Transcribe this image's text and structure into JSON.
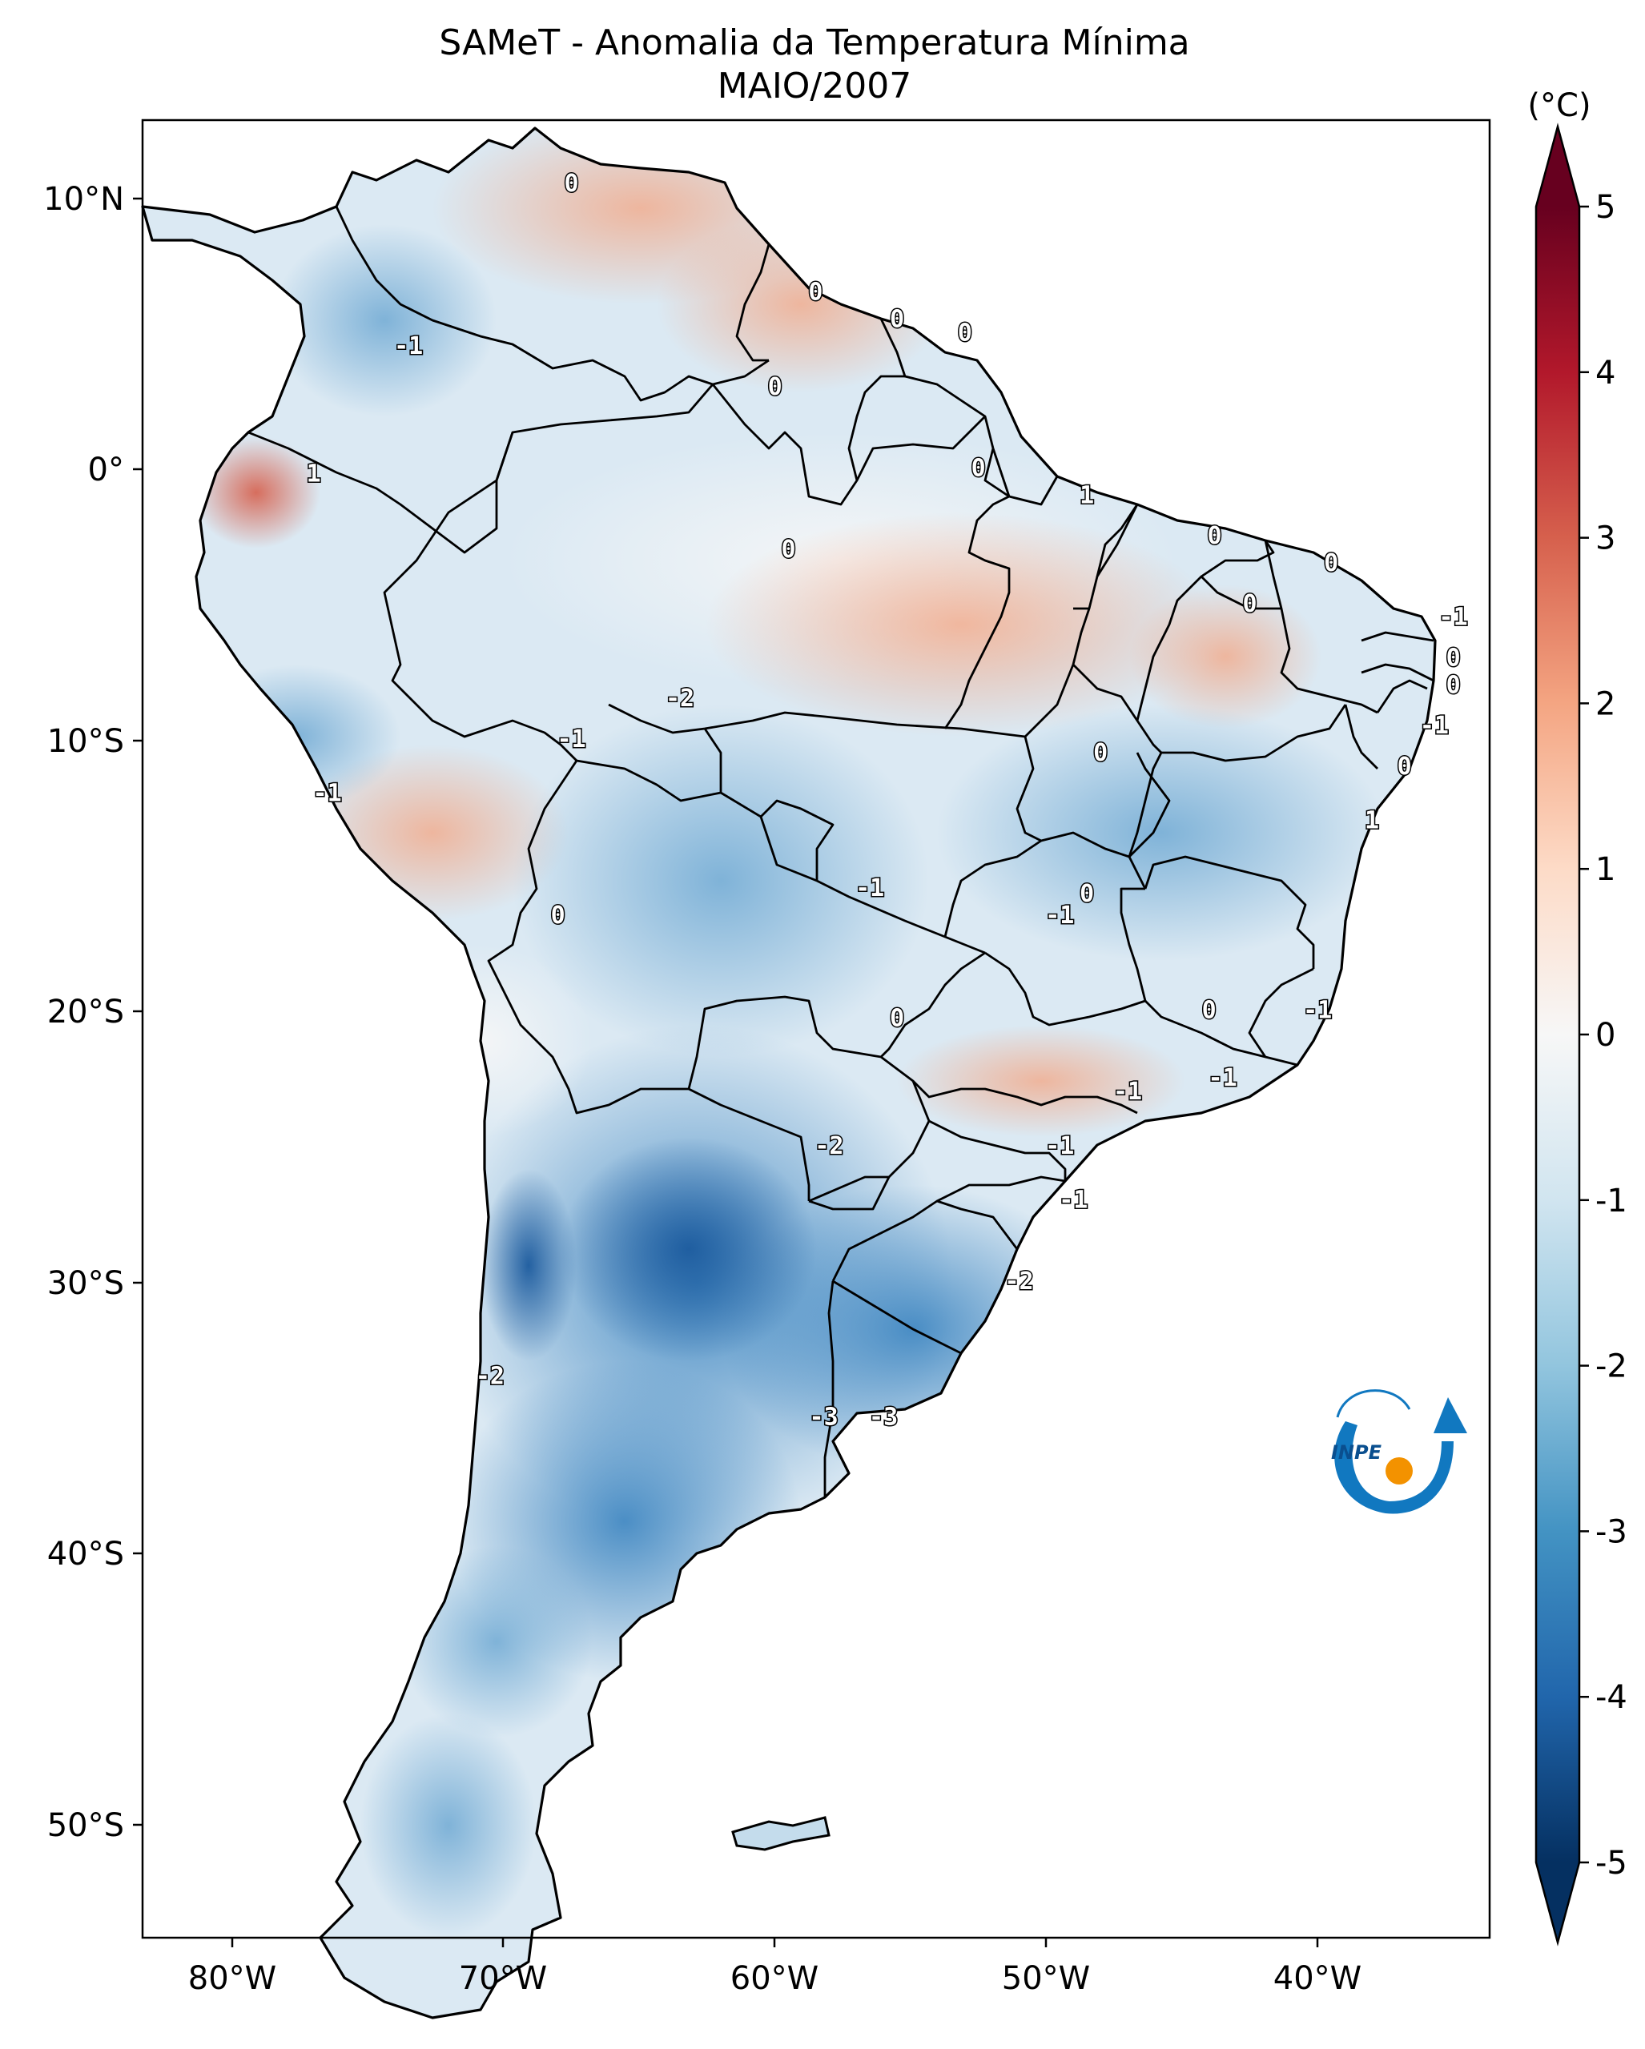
{
  "title": {
    "line1": "SAMeT - Anomalia da Temperatura Mínima",
    "line2": "MAIO/2007"
  },
  "axes": {
    "lon_ticks": [
      "80°W",
      "70°W",
      "60°W",
      "50°W",
      "40°W"
    ],
    "lat_ticks": [
      "10°N",
      "0°",
      "10°S",
      "20°S",
      "30°S",
      "40°S",
      "50°S"
    ]
  },
  "colorbar": {
    "unit_label": "(°C)",
    "tick_labels": [
      "5",
      "4",
      "3",
      "2",
      "1",
      "0",
      "-1",
      "-2",
      "-3",
      "-4",
      "-5"
    ],
    "colors": [
      "#67001f",
      "#b2182b",
      "#d6604d",
      "#f4a582",
      "#fddbc7",
      "#f7f7f7",
      "#d1e5f0",
      "#92c5de",
      "#4393c3",
      "#2166ac",
      "#053061"
    ]
  },
  "contour_labels": [
    {
      "text": "0",
      "lon": -67.5,
      "lat": 10.5
    },
    {
      "text": "0",
      "lon": -58.5,
      "lat": 6.5
    },
    {
      "text": "0",
      "lon": -55.5,
      "lat": 5.5
    },
    {
      "text": "0",
      "lon": -53.0,
      "lat": 5.0
    },
    {
      "text": "-1",
      "lon": -73.5,
      "lat": 4.5
    },
    {
      "text": "0",
      "lon": -60.0,
      "lat": 3.0
    },
    {
      "text": "1",
      "lon": -77.0,
      "lat": -0.2
    },
    {
      "text": "0",
      "lon": -52.5,
      "lat": 0.0
    },
    {
      "text": "1",
      "lon": -48.5,
      "lat": -1.0
    },
    {
      "text": "0",
      "lon": -59.5,
      "lat": -3.0
    },
    {
      "text": "0",
      "lon": -43.8,
      "lat": -2.5
    },
    {
      "text": "0",
      "lon": -39.5,
      "lat": -3.5
    },
    {
      "text": "0",
      "lon": -42.5,
      "lat": -5.0
    },
    {
      "text": "-1",
      "lon": -35.0,
      "lat": -5.5
    },
    {
      "text": "0",
      "lon": -35.0,
      "lat": -7.0
    },
    {
      "text": "0",
      "lon": -35.0,
      "lat": -8.0
    },
    {
      "text": "-2",
      "lon": -63.5,
      "lat": -8.5
    },
    {
      "text": "-1",
      "lon": -35.7,
      "lat": -9.5
    },
    {
      "text": "-1",
      "lon": -67.5,
      "lat": -10.0
    },
    {
      "text": "0",
      "lon": -48.0,
      "lat": -10.5
    },
    {
      "text": "0",
      "lon": -36.8,
      "lat": -11.0
    },
    {
      "text": "-1",
      "lon": -76.5,
      "lat": -12.0
    },
    {
      "text": "1",
      "lon": -38.0,
      "lat": -13.0
    },
    {
      "text": "-1",
      "lon": -56.5,
      "lat": -15.5
    },
    {
      "text": "0",
      "lon": -48.5,
      "lat": -15.7
    },
    {
      "text": "-1",
      "lon": -49.5,
      "lat": -16.5
    },
    {
      "text": "0",
      "lon": -68.0,
      "lat": -16.5
    },
    {
      "text": "0",
      "lon": -44.0,
      "lat": -20.0
    },
    {
      "text": "-1",
      "lon": -40.0,
      "lat": -20.0
    },
    {
      "text": "0",
      "lon": -55.5,
      "lat": -20.3
    },
    {
      "text": "-1",
      "lon": -43.5,
      "lat": -22.5
    },
    {
      "text": "-1",
      "lon": -47.0,
      "lat": -23.0
    },
    {
      "text": "-2",
      "lon": -58.0,
      "lat": -25.0
    },
    {
      "text": "-1",
      "lon": -49.5,
      "lat": -25.0
    },
    {
      "text": "-1",
      "lon": -49.0,
      "lat": -27.0
    },
    {
      "text": "-2",
      "lon": -51.0,
      "lat": -30.0
    },
    {
      "text": "-2",
      "lon": -70.5,
      "lat": -33.5
    },
    {
      "text": "-3",
      "lon": -58.2,
      "lat": -35.0
    },
    {
      "text": "-3",
      "lon": -56.0,
      "lat": -35.0
    }
  ],
  "logo": {
    "text": "INPE"
  }
}
